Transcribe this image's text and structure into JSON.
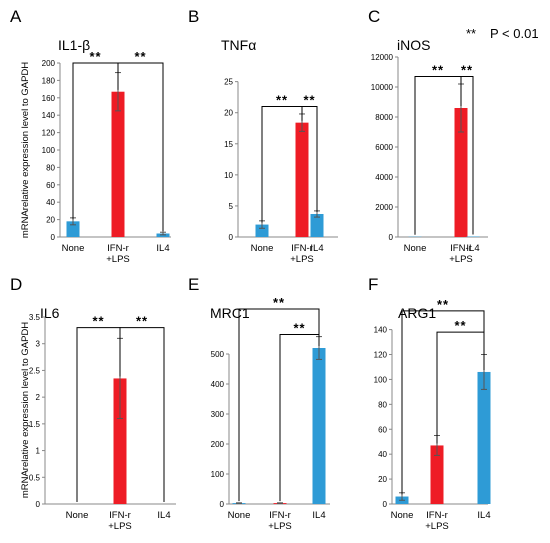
{
  "ylabel": "mRNArelative expression level to GAPDH",
  "significance_note": {
    "marker": "**",
    "text": "P < 0.01"
  },
  "colors": {
    "blue": "#2e9bd6",
    "red": "#ee1c25"
  },
  "chart_data": [
    {
      "panel": "A",
      "title": "IL1-β",
      "type": "bar",
      "xlabel": "",
      "ylabel": "mRNArelative expression level to GAPDH",
      "categories": [
        "None",
        "IFN-r\n+LPS",
        "IL4"
      ],
      "values": [
        18,
        167,
        4
      ],
      "errors": [
        4,
        22,
        1.5
      ],
      "colors": [
        "#2e9bd6",
        "#ee1c25",
        "#2e9bd6"
      ],
      "ylim": [
        0,
        200
      ],
      "yticks": [
        0,
        20,
        40,
        60,
        80,
        100,
        120,
        140,
        160,
        180,
        200
      ],
      "brackets": [
        {
          "from": 0,
          "to": 1,
          "level": 200,
          "label": "**"
        },
        {
          "from": 1,
          "to": 2,
          "level": 200,
          "label": "**"
        }
      ]
    },
    {
      "panel": "B",
      "title": "TNFα",
      "type": "bar",
      "xlabel": "",
      "ylabel": "",
      "categories": [
        "None",
        "IFN-r\n+LPS",
        "IL4"
      ],
      "values": [
        2.0,
        18.4,
        3.7
      ],
      "errors": [
        0.6,
        1.4,
        0.5
      ],
      "colors": [
        "#2e9bd6",
        "#ee1c25",
        "#2e9bd6"
      ],
      "ylim": [
        0,
        28
      ],
      "yticks": [
        0,
        5,
        10,
        15,
        20,
        25
      ],
      "brackets": [
        {
          "from": 0,
          "to": 1,
          "level": 21,
          "label": "**"
        },
        {
          "from": 1,
          "to": 2,
          "level": 21,
          "label": "**"
        }
      ]
    },
    {
      "panel": "C",
      "title": "iNOS",
      "type": "bar",
      "xlabel": "",
      "ylabel": "",
      "categories": [
        "None",
        "IFN-r\n+LPS",
        "IL4"
      ],
      "values": [
        20,
        8600,
        30
      ],
      "errors": [
        0,
        1600,
        0
      ],
      "colors": [
        "#2e9bd6",
        "#ee1c25",
        "#2e9bd6"
      ],
      "ylim": [
        0,
        12000
      ],
      "yticks": [
        0,
        2000,
        4000,
        6000,
        8000,
        10000,
        12000
      ],
      "brackets": [
        {
          "from": 0,
          "to": 1,
          "level": 10700,
          "label": "**"
        },
        {
          "from": 1,
          "to": 2,
          "level": 10700,
          "label": "**"
        }
      ]
    },
    {
      "panel": "D",
      "title": "IL6",
      "type": "bar",
      "xlabel": "",
      "ylabel": "mRNArelative expression level to GAPDH",
      "categories": [
        "None",
        "IFN-r\n+LPS",
        "IL4"
      ],
      "values": [
        0,
        2.35,
        0
      ],
      "errors": [
        0,
        0.75,
        0
      ],
      "colors": [
        "#2e9bd6",
        "#ee1c25",
        "#2e9bd6"
      ],
      "ylim": [
        0,
        3.5
      ],
      "yticks": [
        0,
        0.5,
        1,
        1.5,
        2,
        2.5,
        3,
        3.5
      ],
      "brackets": [
        {
          "from": 0,
          "to": 1,
          "level": 3.3,
          "label": "**"
        },
        {
          "from": 1,
          "to": 2,
          "level": 3.3,
          "label": "**"
        }
      ]
    },
    {
      "panel": "E",
      "title": "MRC1",
      "type": "bar",
      "xlabel": "",
      "ylabel": "",
      "categories": [
        "None",
        "IFN-r\n+LPS",
        "IL4"
      ],
      "values": [
        3,
        3,
        520
      ],
      "errors": [
        1,
        1,
        38
      ],
      "colors": [
        "#2e9bd6",
        "#ee1c25",
        "#2e9bd6"
      ],
      "ylim": [
        0,
        680
      ],
      "yticks": [
        0,
        100,
        200,
        300,
        400,
        500
      ],
      "brackets": [
        {
          "from": 0,
          "to": 2,
          "level": 650,
          "label": "**"
        },
        {
          "from": 1,
          "to": 2,
          "level": 565,
          "label": "**"
        }
      ]
    },
    {
      "panel": "F",
      "title": "ARG1",
      "type": "bar",
      "xlabel": "",
      "ylabel": "",
      "categories": [
        "None",
        "IFN-r\n+LPS",
        "IL4"
      ],
      "values": [
        6,
        47,
        106
      ],
      "errors": [
        3,
        8,
        14
      ],
      "colors": [
        "#2e9bd6",
        "#ee1c25",
        "#2e9bd6"
      ],
      "ylim": [
        0,
        175
      ],
      "yticks": [
        0,
        20,
        40,
        60,
        80,
        100,
        120,
        140
      ],
      "brackets": [
        {
          "from": 0,
          "to": 2,
          "level": 155,
          "label": "**"
        },
        {
          "from": 1,
          "to": 2,
          "level": 138,
          "label": "**"
        }
      ]
    }
  ]
}
